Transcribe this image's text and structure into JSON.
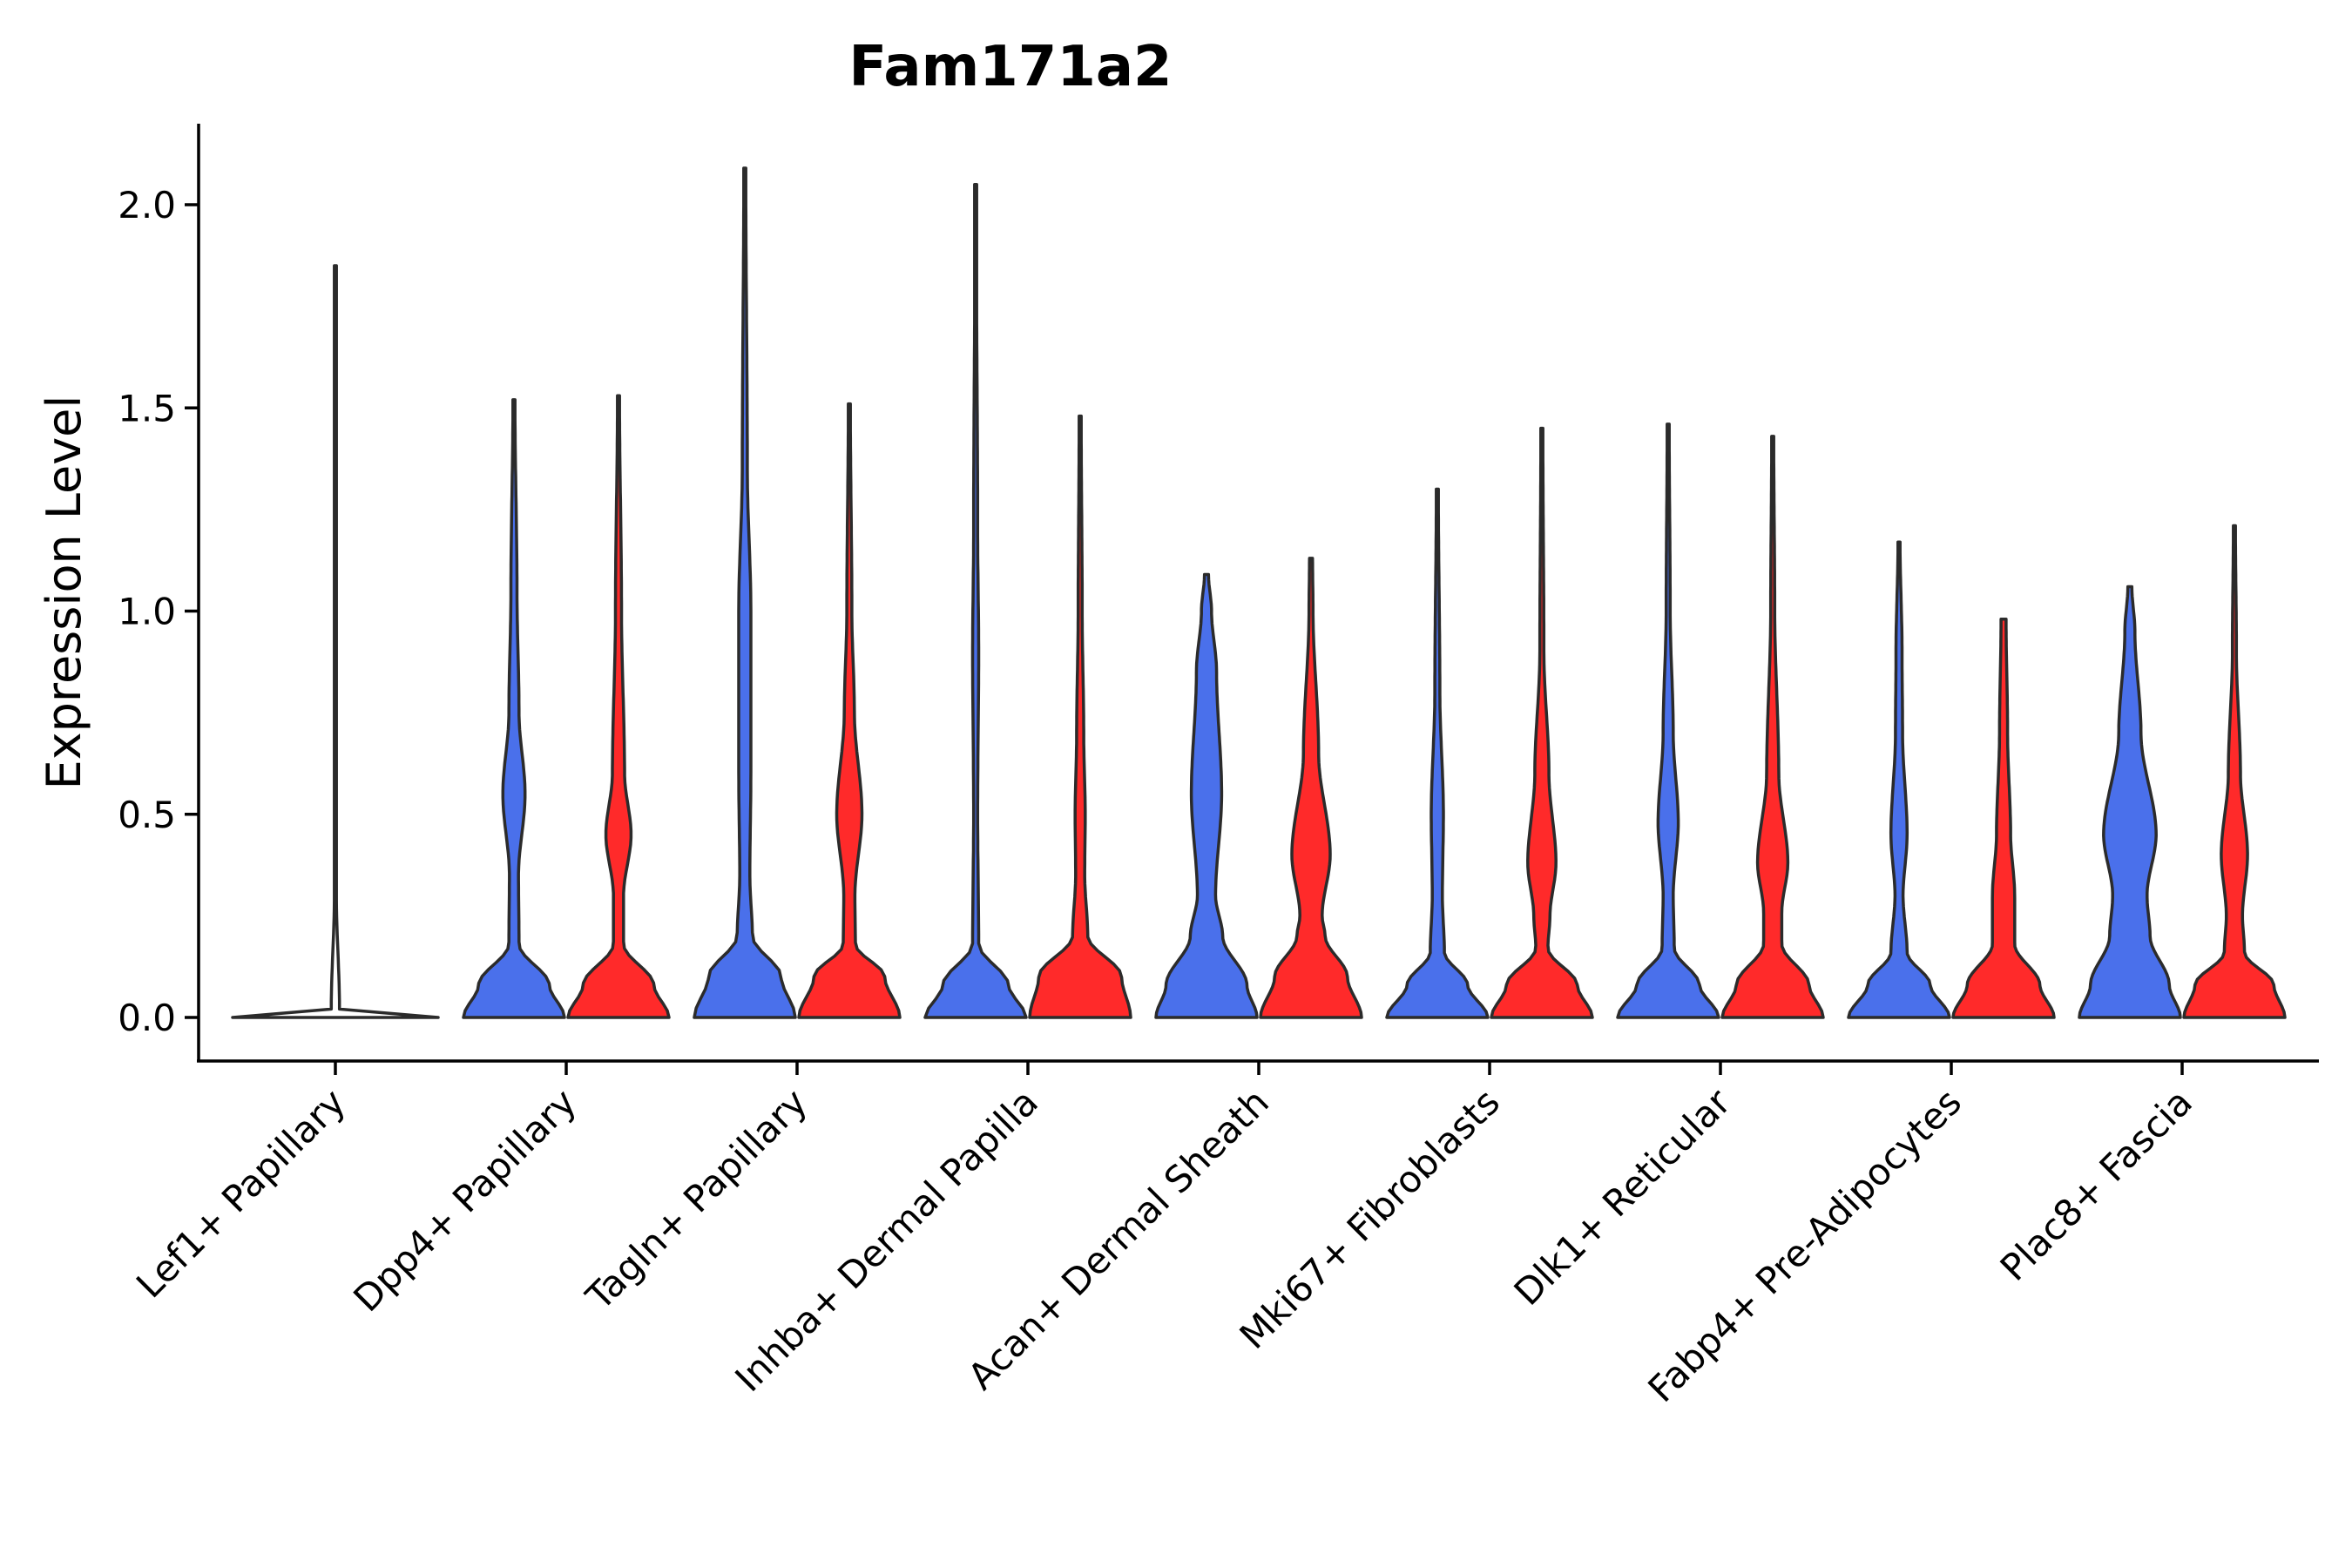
{
  "chart_data": {
    "type": "violin",
    "title": "Fam171a2",
    "xlabel": "",
    "ylabel": "Expression Level",
    "ylim": [
      -0.1,
      2.2
    ],
    "yticks": [
      0.0,
      0.5,
      1.0,
      1.5,
      2.0
    ],
    "ytick_labels": [
      "0.0",
      "0.5",
      "1.0",
      "1.5",
      "2.0"
    ],
    "legend": "none",
    "colors": {
      "group1": "#4a70eb",
      "group2": "#ff2a2a",
      "single": "#ffffff"
    },
    "categories": [
      "Lef1+ Papillary",
      "Dpp4+ Papillary",
      "Tagln+ Papillary",
      "Inhba+ Dermal Papilla",
      "Acan+ Dermal Sheath",
      "Mki67+ Fibroblasts",
      "Dlk1+ Reticular",
      "Fabp4+ Pre-Adipocytes",
      "Plac8+ Fascia"
    ],
    "violins": [
      {
        "category": "Lef1+ Papillary",
        "group": "single",
        "max": 1.85,
        "profile": [
          [
            0,
            1.0
          ],
          [
            0.005,
            0.6
          ],
          [
            0.02,
            0.04
          ],
          [
            0.3,
            0.01
          ],
          [
            0.8,
            0.005
          ],
          [
            1.85,
            0.004
          ]
        ]
      },
      {
        "category": "Dpp4+ Papillary",
        "group": "group1",
        "max": 1.52,
        "profile": [
          [
            0,
            1.0
          ],
          [
            0.08,
            0.7
          ],
          [
            0.18,
            0.1
          ],
          [
            0.35,
            0.09
          ],
          [
            0.55,
            0.22
          ],
          [
            0.75,
            0.1
          ],
          [
            1.05,
            0.06
          ],
          [
            1.52,
            0.02
          ]
        ]
      },
      {
        "category": "Dpp4+ Papillary",
        "group": "group2",
        "max": 1.53,
        "profile": [
          [
            0,
            1.0
          ],
          [
            0.08,
            0.7
          ],
          [
            0.18,
            0.1
          ],
          [
            0.3,
            0.1
          ],
          [
            0.45,
            0.25
          ],
          [
            0.6,
            0.12
          ],
          [
            1.0,
            0.06
          ],
          [
            1.53,
            0.02
          ]
        ]
      },
      {
        "category": "Tagln+ Papillary",
        "group": "group1",
        "max": 2.09,
        "profile": [
          [
            0,
            1.0
          ],
          [
            0.1,
            0.72
          ],
          [
            0.2,
            0.15
          ],
          [
            0.35,
            0.1
          ],
          [
            0.6,
            0.12
          ],
          [
            1.0,
            0.12
          ],
          [
            1.35,
            0.05
          ],
          [
            2.09,
            0.02
          ]
        ]
      },
      {
        "category": "Tagln+ Papillary",
        "group": "group2",
        "max": 1.51,
        "profile": [
          [
            0,
            1.0
          ],
          [
            0.1,
            0.7
          ],
          [
            0.18,
            0.12
          ],
          [
            0.3,
            0.11
          ],
          [
            0.5,
            0.25
          ],
          [
            0.75,
            0.1
          ],
          [
            1.0,
            0.05
          ],
          [
            1.51,
            0.02
          ]
        ]
      },
      {
        "category": "Inhba+ Dermal Papilla",
        "group": "group1",
        "max": 2.05,
        "profile": [
          [
            0,
            1.0
          ],
          [
            0.08,
            0.65
          ],
          [
            0.18,
            0.06
          ],
          [
            0.5,
            0.04
          ],
          [
            0.9,
            0.06
          ],
          [
            1.2,
            0.04
          ],
          [
            2.05,
            0.01
          ]
        ]
      },
      {
        "category": "Inhba+ Dermal Papilla",
        "group": "group2",
        "max": 1.48,
        "profile": [
          [
            0,
            1.0
          ],
          [
            0.1,
            0.82
          ],
          [
            0.2,
            0.15
          ],
          [
            0.35,
            0.09
          ],
          [
            0.5,
            0.1
          ],
          [
            0.7,
            0.07
          ],
          [
            1.0,
            0.04
          ],
          [
            1.48,
            0.02
          ]
        ]
      },
      {
        "category": "Acan+ Dermal Sheath",
        "group": "group1",
        "max": 1.09,
        "profile": [
          [
            0,
            1.0
          ],
          [
            0.08,
            0.8
          ],
          [
            0.2,
            0.32
          ],
          [
            0.3,
            0.18
          ],
          [
            0.55,
            0.3
          ],
          [
            0.85,
            0.2
          ],
          [
            1.0,
            0.1
          ],
          [
            1.09,
            0.04
          ]
        ]
      },
      {
        "category": "Acan+ Dermal Sheath",
        "group": "group2",
        "max": 1.13,
        "profile": [
          [
            0,
            1.0
          ],
          [
            0.1,
            0.72
          ],
          [
            0.2,
            0.28
          ],
          [
            0.25,
            0.22
          ],
          [
            0.4,
            0.38
          ],
          [
            0.65,
            0.15
          ],
          [
            1.0,
            0.04
          ],
          [
            1.13,
            0.03
          ]
        ]
      },
      {
        "category": "Mki67+ Fibroblasts",
        "group": "group1",
        "max": 1.3,
        "profile": [
          [
            0,
            1.0
          ],
          [
            0.08,
            0.6
          ],
          [
            0.16,
            0.14
          ],
          [
            0.3,
            0.1
          ],
          [
            0.5,
            0.12
          ],
          [
            0.8,
            0.05
          ],
          [
            1.3,
            0.02
          ]
        ]
      },
      {
        "category": "Mki67+ Fibroblasts",
        "group": "group2",
        "max": 1.45,
        "profile": [
          [
            0,
            1.0
          ],
          [
            0.08,
            0.7
          ],
          [
            0.17,
            0.12
          ],
          [
            0.25,
            0.16
          ],
          [
            0.38,
            0.28
          ],
          [
            0.6,
            0.14
          ],
          [
            0.9,
            0.04
          ],
          [
            1.45,
            0.02
          ]
        ]
      },
      {
        "category": "Dlk1+ Reticular",
        "group": "group1",
        "max": 1.46,
        "profile": [
          [
            0,
            1.0
          ],
          [
            0.08,
            0.62
          ],
          [
            0.17,
            0.12
          ],
          [
            0.3,
            0.1
          ],
          [
            0.48,
            0.2
          ],
          [
            0.7,
            0.1
          ],
          [
            1.0,
            0.04
          ],
          [
            1.46,
            0.02
          ]
        ]
      },
      {
        "category": "Dlk1+ Reticular",
        "group": "group2",
        "max": 1.43,
        "profile": [
          [
            0,
            1.0
          ],
          [
            0.08,
            0.72
          ],
          [
            0.18,
            0.18
          ],
          [
            0.26,
            0.18
          ],
          [
            0.38,
            0.3
          ],
          [
            0.6,
            0.12
          ],
          [
            1.0,
            0.04
          ],
          [
            1.43,
            0.02
          ]
        ]
      },
      {
        "category": "Fabp4+ Pre-Adipocytes",
        "group": "group1",
        "max": 1.17,
        "profile": [
          [
            0,
            1.0
          ],
          [
            0.08,
            0.62
          ],
          [
            0.16,
            0.16
          ],
          [
            0.3,
            0.08
          ],
          [
            0.45,
            0.16
          ],
          [
            0.7,
            0.07
          ],
          [
            0.9,
            0.06
          ],
          [
            1.17,
            0.02
          ]
        ]
      },
      {
        "category": "Fabp4+ Pre-Adipocytes",
        "group": "group2",
        "max": 0.98,
        "profile": [
          [
            0,
            1.0
          ],
          [
            0.08,
            0.72
          ],
          [
            0.18,
            0.22
          ],
          [
            0.3,
            0.22
          ],
          [
            0.45,
            0.14
          ],
          [
            0.7,
            0.08
          ],
          [
            0.98,
            0.05
          ]
        ]
      },
      {
        "category": "Plac8+ Fascia",
        "group": "group1",
        "max": 1.06,
        "profile": [
          [
            0,
            1.0
          ],
          [
            0.08,
            0.78
          ],
          [
            0.2,
            0.4
          ],
          [
            0.3,
            0.34
          ],
          [
            0.45,
            0.52
          ],
          [
            0.7,
            0.22
          ],
          [
            0.95,
            0.1
          ],
          [
            1.06,
            0.04
          ]
        ]
      },
      {
        "category": "Plac8+ Fascia",
        "group": "group2",
        "max": 1.21,
        "profile": [
          [
            0,
            1.0
          ],
          [
            0.08,
            0.78
          ],
          [
            0.16,
            0.2
          ],
          [
            0.25,
            0.16
          ],
          [
            0.4,
            0.26
          ],
          [
            0.6,
            0.12
          ],
          [
            0.9,
            0.04
          ],
          [
            1.21,
            0.02
          ]
        ]
      }
    ]
  }
}
